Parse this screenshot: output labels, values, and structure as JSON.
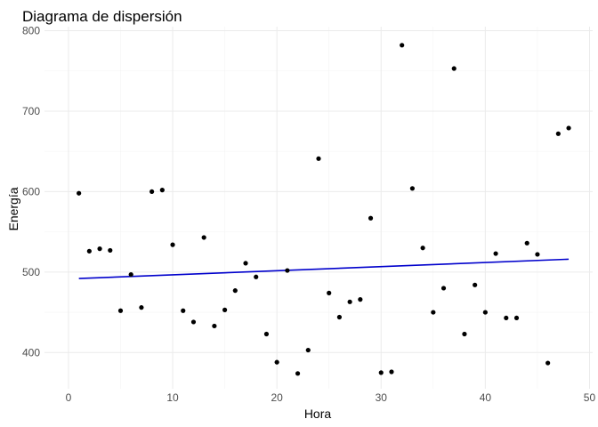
{
  "chart_data": {
    "type": "scatter",
    "title": "Diagrama de dispersión",
    "xlabel": "Hora",
    "ylabel": "Energía",
    "xlim": [
      -2.3,
      50.3
    ],
    "ylim": [
      355,
      805
    ],
    "xticks": [
      0,
      10,
      20,
      30,
      40,
      50
    ],
    "yticks": [
      400,
      500,
      600,
      700,
      800
    ],
    "grid": true,
    "colors": {
      "points": "#000000",
      "trend": "#0000cc",
      "grid": "#ebebeb"
    },
    "x": [
      1,
      2,
      3,
      4,
      5,
      6,
      7,
      8,
      9,
      10,
      11,
      12,
      13,
      14,
      15,
      16,
      17,
      18,
      19,
      20,
      21,
      22,
      23,
      24,
      25,
      26,
      27,
      28,
      29,
      30,
      31,
      32,
      33,
      34,
      35,
      36,
      37,
      38,
      39,
      40,
      41,
      42,
      43,
      44,
      45,
      46,
      47,
      48
    ],
    "y": [
      598,
      526,
      529,
      527,
      452,
      497,
      456,
      600,
      602,
      534,
      452,
      438,
      543,
      433,
      453,
      477,
      511,
      494,
      423,
      388,
      502,
      374,
      403,
      641,
      474,
      444,
      463,
      466,
      567,
      375,
      376,
      782,
      604,
      530,
      450,
      480,
      753,
      423,
      484,
      450,
      523,
      443,
      443,
      536,
      522,
      387,
      672,
      679
    ],
    "trend": {
      "x": [
        1,
        48
      ],
      "y": [
        492,
        516
      ]
    }
  }
}
